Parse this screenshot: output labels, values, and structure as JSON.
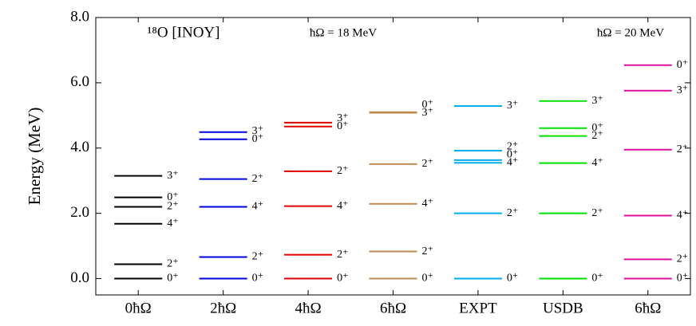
{
  "chart_data": {
    "type": "level-scheme",
    "title": "¹⁸O [INOY]",
    "annotations": [
      "ħΩ = 18 MeV",
      "ħΩ = 20 MeV"
    ],
    "y_label": "Energy (MeV)",
    "ylim": [
      -0.5,
      8.0
    ],
    "yticks": [
      {
        "value": 0,
        "label": "0.0"
      },
      {
        "value": 2,
        "label": "2.0"
      },
      {
        "value": 4,
        "label": "4.0"
      },
      {
        "value": 6,
        "label": "6.0"
      },
      {
        "value": 8,
        "label": "8.0"
      }
    ],
    "columns": [
      {
        "label": "0ħΩ",
        "color": "#000000",
        "energies": [
          0,
          0.44,
          1.68,
          2.2,
          2.49,
          3.15
        ],
        "spins": [
          "0⁺",
          "2⁺",
          "4⁺",
          "2⁺",
          "0⁺",
          "3⁺"
        ]
      },
      {
        "label": "2ħΩ",
        "color": "#0000dd",
        "energies": [
          0,
          0.66,
          2.2,
          3.05,
          4.27,
          4.49
        ],
        "spins": [
          "0⁺",
          "2⁺",
          "4⁺",
          "2⁺",
          "0⁺",
          "3⁺"
        ]
      },
      {
        "label": "4ħΩ",
        "color": "#e00000",
        "energies": [
          0,
          0.73,
          2.22,
          3.29,
          4.66,
          4.78
        ],
        "spins": [
          "0⁺",
          "2⁺",
          "4⁺",
          "2⁺",
          "0⁺",
          "3⁺"
        ]
      },
      {
        "label": "6ħΩ",
        "color": "#c08a50",
        "energies": [
          0,
          0.83,
          2.29,
          3.51,
          5.08,
          5.1
        ],
        "spins": [
          "0⁺",
          "2⁺",
          "4⁺",
          "2⁺",
          "3⁺",
          "0⁺"
        ]
      },
      {
        "label": "EXPT",
        "color": "#00b0f0",
        "energies": [
          0,
          2.0,
          3.55,
          3.63,
          3.92,
          5.29
        ],
        "spins": [
          "0⁺",
          "2⁺",
          "4⁺",
          "0⁺",
          "2⁺",
          "3⁺"
        ]
      },
      {
        "label": "USDB",
        "color": "#00e000",
        "energies": [
          0,
          2.0,
          3.54,
          4.37,
          4.61,
          5.44
        ],
        "spins": [
          "0⁺",
          "2⁺",
          "4⁺",
          "2⁺",
          "0⁺",
          "3⁺"
        ]
      },
      {
        "label": "6ħΩ",
        "color": "#e0109e",
        "energies": [
          0,
          0.59,
          1.93,
          3.95,
          5.76,
          6.54
        ],
        "spins": [
          "0⁺",
          "2⁺",
          "4⁺",
          "2⁺",
          "3⁺",
          "0⁺"
        ]
      }
    ]
  }
}
